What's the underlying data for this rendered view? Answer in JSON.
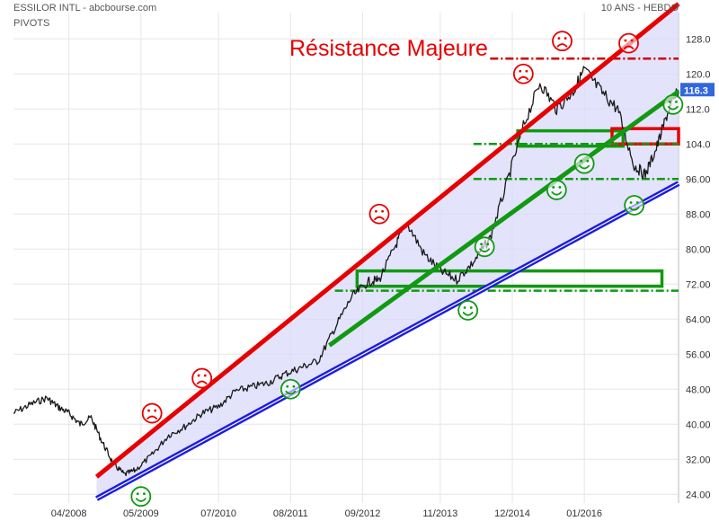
{
  "header": {
    "source": "ESSILOR INTL - abcbourse.com",
    "subtitle": "PIVOTS",
    "period": "10 ANS - HEBDO"
  },
  "chart_data": {
    "type": "line",
    "title": "ESSILOR INTL - abcbourse.com",
    "ylim": [
      22,
      134
    ],
    "xlim": [
      "2007-06",
      "2017-06"
    ],
    "y_ticks": [
      24,
      32,
      40,
      48,
      56,
      64,
      72,
      80,
      88,
      96,
      104,
      112,
      120,
      128
    ],
    "y_tick_labels": [
      "24.00",
      "32.00",
      "40.00",
      "48.00",
      "56.00",
      "64.00",
      "72.00",
      "80.00",
      "88.00",
      "96.00",
      "104.0",
      "112.0",
      "120.0",
      "128.0"
    ],
    "x_ticks": [
      {
        "label": "04/2008",
        "date": "2008-04"
      },
      {
        "label": "05/2009",
        "date": "2009-05"
      },
      {
        "label": "07/2010",
        "date": "2010-07"
      },
      {
        "label": "08/2011",
        "date": "2011-08"
      },
      {
        "label": "09/2012",
        "date": "2012-09"
      },
      {
        "label": "11/2013",
        "date": "2013-11"
      },
      {
        "label": "12/2014",
        "date": "2014-12"
      },
      {
        "label": "01/2016",
        "date": "2016-01"
      }
    ],
    "last_price": 116.3,
    "last_price_label": "116.3",
    "series": [
      {
        "values": [
          [
            "2007-06",
            42.5
          ],
          [
            "2007-09",
            44.5
          ],
          [
            "2007-12",
            46.0
          ],
          [
            "2008-02",
            44.0
          ],
          [
            "2008-04",
            42.5
          ],
          [
            "2008-06",
            40.0
          ],
          [
            "2008-08",
            41.5
          ],
          [
            "2008-10",
            36.0
          ],
          [
            "2008-12",
            31.0
          ],
          [
            "2009-02",
            28.5
          ],
          [
            "2009-04",
            29.5
          ],
          [
            "2009-07",
            33.0
          ],
          [
            "2009-10",
            37.5
          ],
          [
            "2010-01",
            39.5
          ],
          [
            "2010-04",
            42.5
          ],
          [
            "2010-07",
            44.0
          ],
          [
            "2010-10",
            47.5
          ],
          [
            "2011-01",
            48.5
          ],
          [
            "2011-04",
            49.5
          ],
          [
            "2011-07",
            51.5
          ],
          [
            "2011-10",
            53.0
          ],
          [
            "2012-01",
            54.5
          ],
          [
            "2012-04",
            62.0
          ],
          [
            "2012-07",
            69.0
          ],
          [
            "2012-10",
            72.5
          ],
          [
            "2012-12",
            73.0
          ],
          [
            "2013-03",
            81.0
          ],
          [
            "2013-05",
            86.0
          ],
          [
            "2013-08",
            79.0
          ],
          [
            "2013-11",
            75.0
          ],
          [
            "2014-02",
            73.0
          ],
          [
            "2014-05",
            77.0
          ],
          [
            "2014-08",
            82.5
          ],
          [
            "2014-11",
            95.0
          ],
          [
            "2015-02",
            108.0
          ],
          [
            "2015-05",
            118.0
          ],
          [
            "2015-08",
            112.0
          ],
          [
            "2015-11",
            116.0
          ],
          [
            "2016-01",
            121.0
          ],
          [
            "2016-04",
            116.0
          ],
          [
            "2016-07",
            112.0
          ],
          [
            "2016-10",
            99.0
          ],
          [
            "2016-12",
            97.0
          ],
          [
            "2017-02",
            103.0
          ],
          [
            "2017-04",
            111.0
          ],
          [
            "2017-06",
            116.3
          ]
        ]
      }
    ],
    "annotations": {
      "text": "Résistance Majeure",
      "trend_lines": [
        {
          "color": "#e60000",
          "from": [
            "2008-09",
            28.0
          ],
          "to": [
            "2017-06",
            136.0
          ]
        },
        {
          "color": "#1c1ce0",
          "from": [
            "2008-09",
            23.0
          ],
          "to": [
            "2017-06",
            95.0
          ]
        },
        {
          "color": "#119911",
          "from": [
            "2012-03",
            58.0
          ],
          "to": [
            "2017-06",
            116.0
          ]
        }
      ],
      "horizontal_levels": [
        {
          "color": "#cc0000",
          "y": 123.5,
          "from": "2014-08",
          "to": "2017-06"
        },
        {
          "color": "#119911",
          "y": 104.0,
          "from": "2014-05",
          "to": "2017-06"
        },
        {
          "color": "#119911",
          "y": 96.0,
          "from": "2014-05",
          "to": "2017-06"
        },
        {
          "color": "#119911",
          "y": 70.5,
          "from": "2012-04",
          "to": "2017-06"
        }
      ],
      "zones": [
        {
          "color": "#119911",
          "x0": "2012-08",
          "x1": "2017-03",
          "y0": 71.5,
          "y1": 75.0
        },
        {
          "color": "#119911",
          "x0": "2015-01",
          "x1": "2016-08",
          "y0": 103.5,
          "y1": 107.0
        },
        {
          "color": "#e60000",
          "x0": "2016-06",
          "x1": "2017-06",
          "y0": 104.0,
          "y1": 107.5
        }
      ],
      "frowns": [
        [
          "2009-07",
          42.5
        ],
        [
          "2010-04",
          50.5
        ],
        [
          "2012-12",
          88.0
        ],
        [
          "2015-02",
          120.0
        ],
        [
          "2015-09",
          127.5
        ],
        [
          "2016-09",
          127.0
        ]
      ],
      "smiles": [
        [
          "2009-05",
          23.5
        ],
        [
          "2011-08",
          48.0
        ],
        [
          "2014-04",
          66.0
        ],
        [
          "2014-07",
          80.5
        ],
        [
          "2015-08",
          93.5
        ],
        [
          "2016-01",
          99.5
        ],
        [
          "2016-10",
          90.0
        ],
        [
          "2017-05",
          113.0
        ]
      ]
    }
  }
}
